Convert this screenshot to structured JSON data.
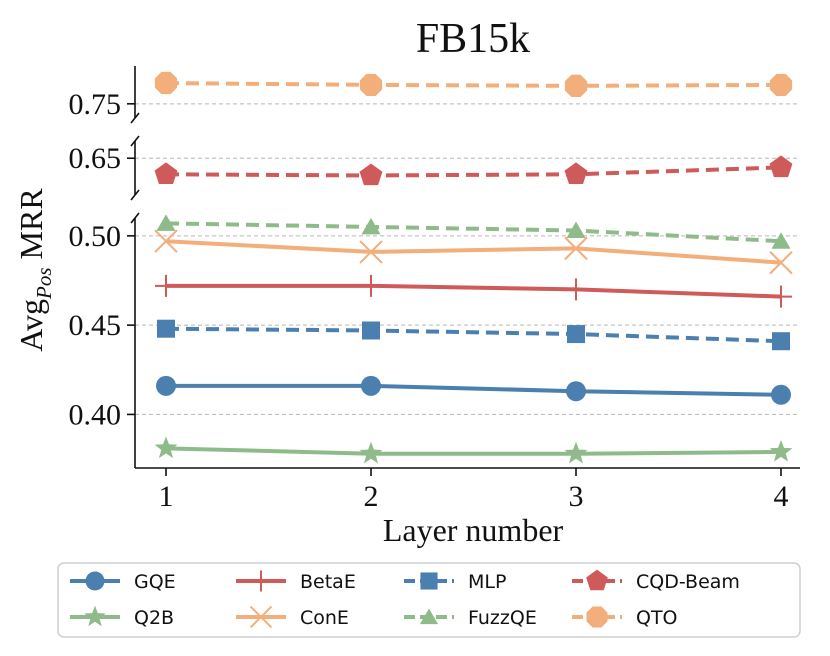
{
  "chart_data": {
    "type": "line",
    "title": "FB15k",
    "xlabel": "Layer number",
    "ylabel_main": "Avg",
    "ylabel_sub": "Pos",
    "ylabel_tail": " MRR",
    "x": [
      1,
      2,
      3,
      4
    ],
    "x_tick_labels": [
      "1",
      "2",
      "3",
      "4"
    ],
    "broken_y_axis": true,
    "panels": [
      {
        "name": "top",
        "ylim": [
          0.735,
          0.79
        ],
        "ticks": [
          0.75
        ],
        "tick_labels": [
          "0.75"
        ]
      },
      {
        "name": "middle",
        "ylim": [
          0.618,
          0.665
        ],
        "ticks": [
          0.65
        ],
        "tick_labels": [
          "0.65"
        ]
      },
      {
        "name": "bottom",
        "ylim": [
          0.37,
          0.51
        ],
        "ticks": [
          0.4,
          0.45,
          0.5
        ],
        "tick_labels": [
          "0.40",
          "0.45",
          "0.50"
        ]
      }
    ],
    "grid": "horizontal dashed",
    "legend_position": "bottom",
    "series": [
      {
        "name": "GQE",
        "panel": "bottom",
        "values": [
          0.416,
          0.416,
          0.413,
          0.411
        ],
        "color": "#4a7fb0",
        "dashed": false,
        "marker": "circle"
      },
      {
        "name": "Q2B",
        "panel": "bottom",
        "values": [
          0.381,
          0.378,
          0.378,
          0.379
        ],
        "color": "#8fbb8a",
        "dashed": false,
        "marker": "star"
      },
      {
        "name": "BetaE",
        "panel": "bottom",
        "values": [
          0.472,
          0.472,
          0.47,
          0.466
        ],
        "color": "#cf5a5a",
        "dashed": false,
        "marker": "plus"
      },
      {
        "name": "ConE",
        "panel": "bottom",
        "values": [
          0.497,
          0.491,
          0.493,
          0.485
        ],
        "color": "#f2ae7b",
        "dashed": false,
        "marker": "x"
      },
      {
        "name": "MLP",
        "panel": "bottom",
        "values": [
          0.448,
          0.447,
          0.445,
          0.441
        ],
        "color": "#4a7fb0",
        "dashed": true,
        "marker": "square"
      },
      {
        "name": "FuzzQE",
        "panel": "bottom",
        "values": [
          0.507,
          0.505,
          0.503,
          0.497
        ],
        "color": "#8fbb8a",
        "dashed": true,
        "marker": "triangle"
      },
      {
        "name": "CQD-Beam",
        "panel": "middle",
        "values": [
          0.636,
          0.635,
          0.636,
          0.642
        ],
        "color": "#cf5a5a",
        "dashed": true,
        "marker": "pentagon"
      },
      {
        "name": "QTO",
        "panel": "top",
        "values": [
          0.772,
          0.77,
          0.769,
          0.77
        ],
        "color": "#f2ae7b",
        "dashed": true,
        "marker": "octagon"
      }
    ],
    "legend_order": [
      "GQE",
      "BetaE",
      "MLP",
      "CQD-Beam",
      "Q2B",
      "ConE",
      "FuzzQE",
      "QTO"
    ]
  }
}
